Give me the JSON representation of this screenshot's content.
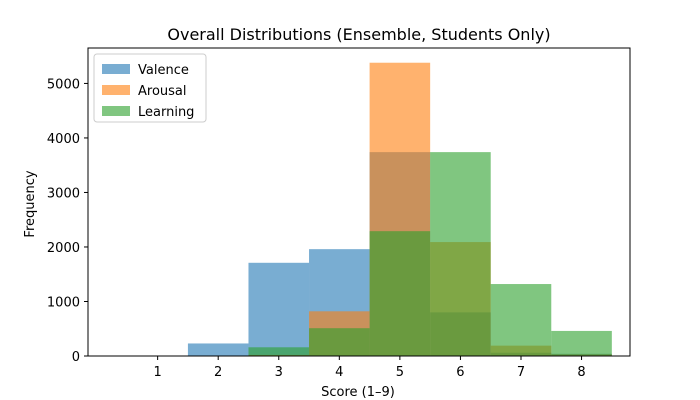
{
  "chart_data": {
    "type": "bar",
    "title": "Overall Distributions (Ensemble, Students Only)",
    "xlabel": "Score (1–9)",
    "ylabel": "Frequency",
    "bins": [
      [
        0.5,
        1.5
      ],
      [
        1.5,
        2.5
      ],
      [
        2.5,
        3.5
      ],
      [
        3.5,
        4.5
      ],
      [
        4.5,
        5.5
      ],
      [
        5.5,
        6.5
      ],
      [
        6.5,
        7.5
      ],
      [
        7.5,
        8.5
      ]
    ],
    "xlim": [
      -0.15,
      8.8
    ],
    "ylim": [
      0,
      5650
    ],
    "xticks": [
      1,
      2,
      3,
      4,
      5,
      6,
      7,
      8
    ],
    "yticks": [
      0,
      1000,
      2000,
      3000,
      4000,
      5000
    ],
    "grid": false,
    "legend_position": "top-left",
    "series": [
      {
        "name": "Valence",
        "color": "#1f77b4",
        "values": [
          0,
          230,
          1710,
          1960,
          3740,
          800,
          60,
          40
        ]
      },
      {
        "name": "Arousal",
        "color": "#ff7f0e",
        "values": [
          0,
          0,
          20,
          820,
          5380,
          2090,
          190,
          30
        ]
      },
      {
        "name": "Learning",
        "color": "#2ca02c",
        "values": [
          0,
          0,
          160,
          510,
          2290,
          3740,
          1320,
          460
        ]
      }
    ]
  }
}
